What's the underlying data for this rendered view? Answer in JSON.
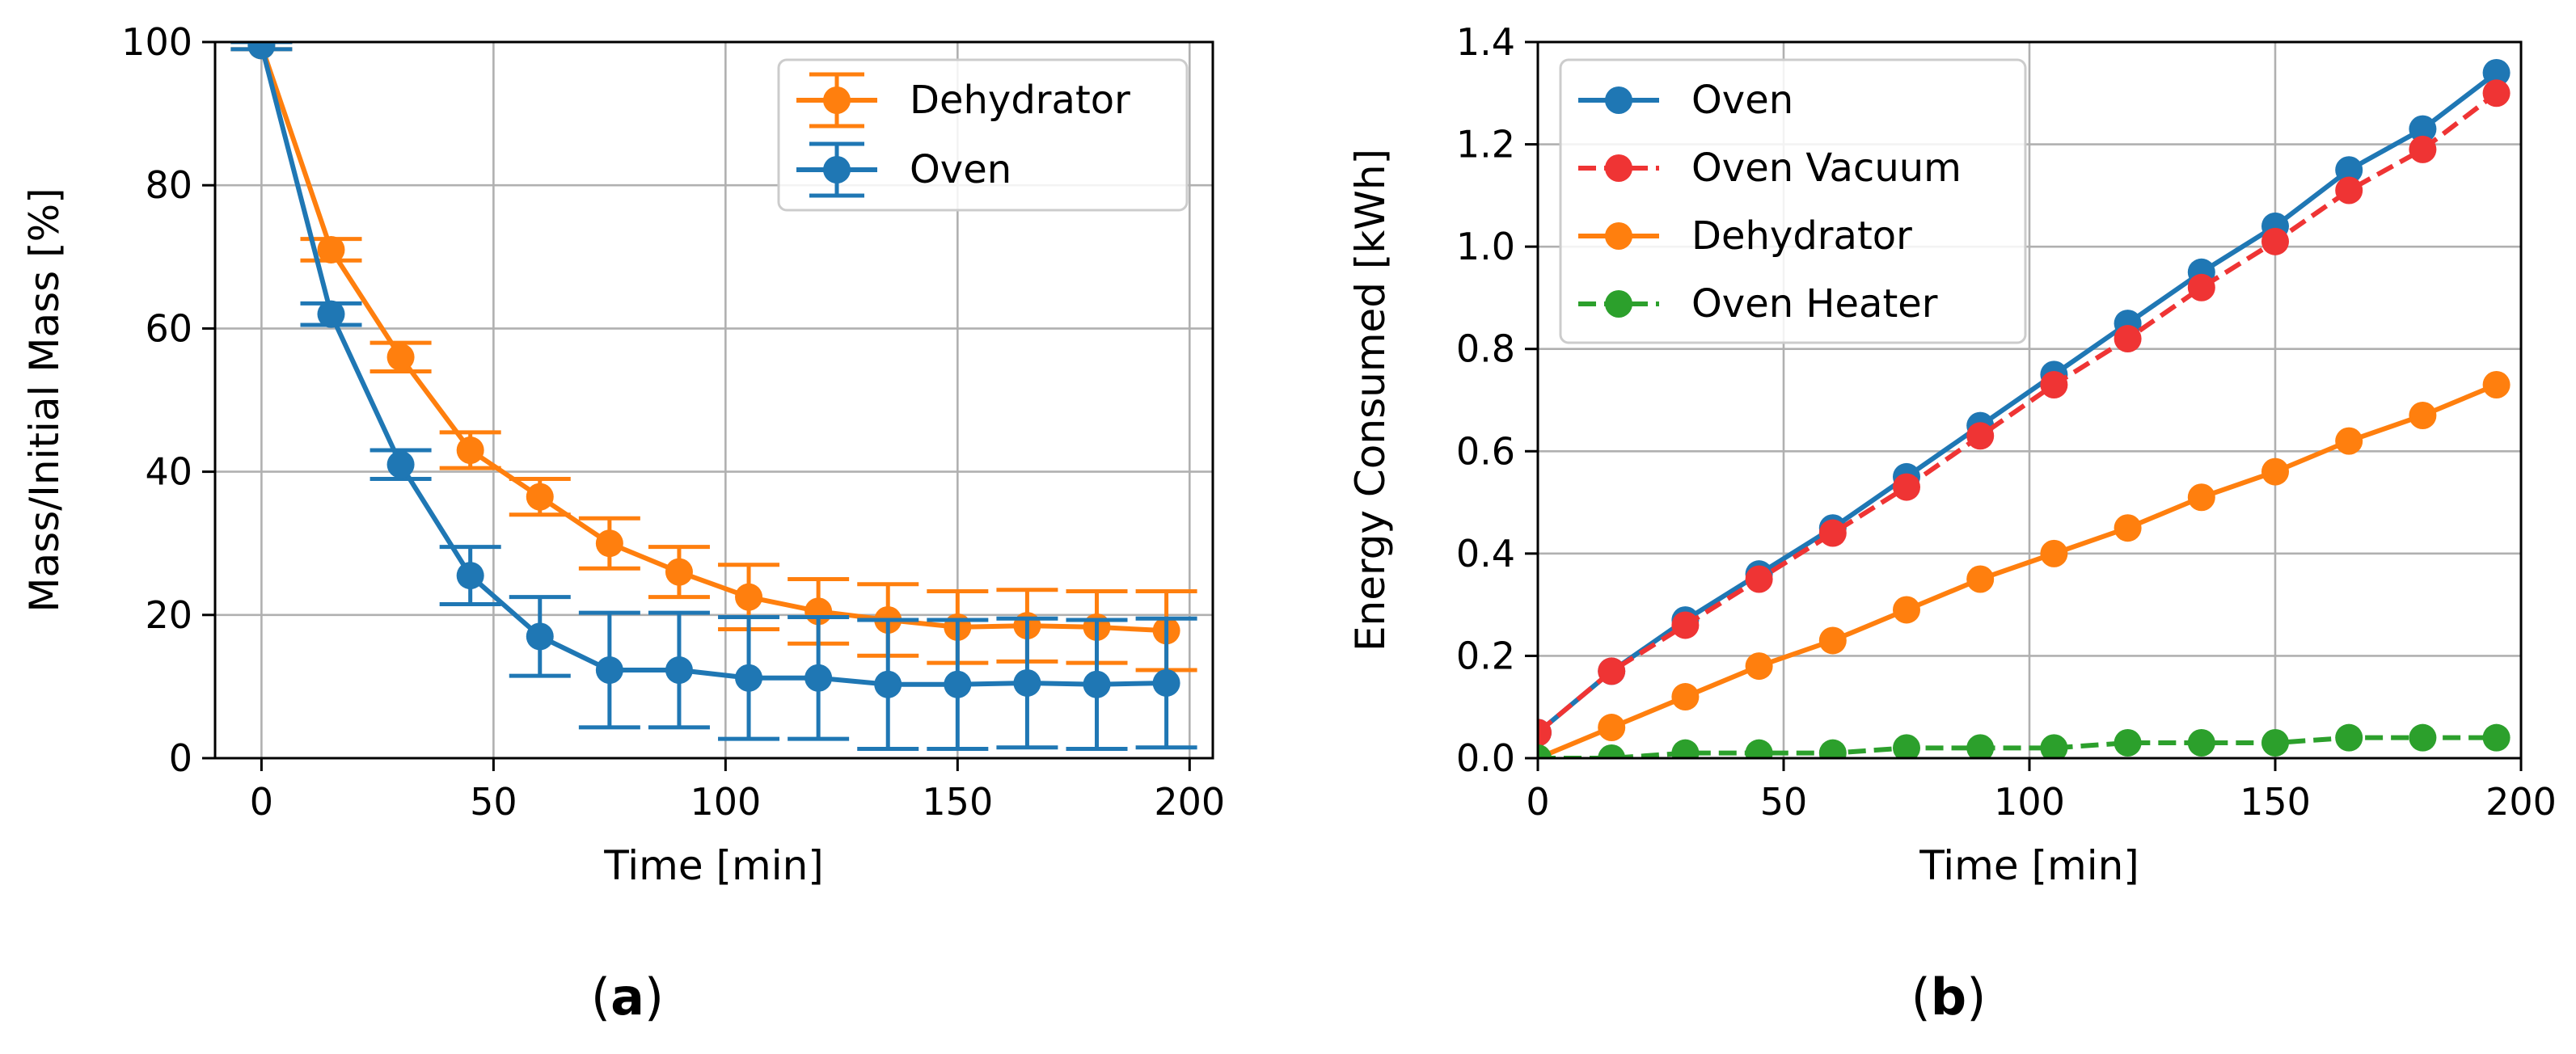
{
  "panels": [
    {
      "label_open": "(",
      "label_letter": "a",
      "label_close": ")"
    },
    {
      "label_open": "(",
      "label_letter": "b",
      "label_close": ")"
    }
  ],
  "chart_data": [
    {
      "id": "a",
      "type": "line",
      "xlabel": "Time [min]",
      "ylabel": "Mass/Initial Mass [%]",
      "xlim": [
        -10,
        205
      ],
      "ylim": [
        0,
        100
      ],
      "xticks": [
        0,
        50,
        100,
        150,
        200
      ],
      "yticks": [
        0,
        20,
        40,
        60,
        80,
        100
      ],
      "grid": true,
      "legend": "top-right",
      "series": [
        {
          "name": "Dehydrator",
          "color": "#ff7f0e",
          "linestyle": "solid",
          "x": [
            0,
            15,
            30,
            45,
            60,
            75,
            90,
            105,
            120,
            135,
            150,
            165,
            180,
            195
          ],
          "y": [
            99.5,
            71,
            56,
            43,
            36.5,
            30,
            26,
            22.5,
            20.5,
            19.3,
            18.3,
            18.5,
            18.3,
            17.8
          ],
          "err": [
            0.5,
            1.5,
            2,
            2.5,
            2.5,
            3.5,
            3.5,
            4.5,
            4.5,
            5,
            5,
            5,
            5,
            5.5
          ]
        },
        {
          "name": "Oven",
          "color": "#1f77b4",
          "linestyle": "solid",
          "x": [
            0,
            15,
            30,
            45,
            60,
            75,
            90,
            105,
            120,
            135,
            150,
            165,
            180,
            195
          ],
          "y": [
            99.5,
            62,
            41,
            25.5,
            17,
            12.3,
            12.3,
            11.2,
            11.2,
            10.3,
            10.3,
            10.5,
            10.3,
            10.5
          ],
          "err": [
            0.5,
            1.5,
            2,
            4,
            5.5,
            8,
            8,
            8.5,
            8.5,
            9,
            9,
            9,
            9,
            9
          ]
        }
      ]
    },
    {
      "id": "b",
      "type": "line",
      "xlabel": "Time [min]",
      "ylabel": "Energy Consumed [kWh]",
      "xlim": [
        0,
        200
      ],
      "ylim": [
        0,
        1.4
      ],
      "xticks": [
        0,
        50,
        100,
        150,
        200
      ],
      "yticks": [
        0.0,
        0.2,
        0.4,
        0.6,
        0.8,
        1.0,
        1.2,
        1.4
      ],
      "ytick_labels": [
        "0.0",
        "0.2",
        "0.4",
        "0.6",
        "0.8",
        "1.0",
        "1.2",
        "1.4"
      ],
      "grid": true,
      "legend": "top-left",
      "series": [
        {
          "name": "Oven",
          "color": "#1f77b4",
          "linestyle": "solid",
          "x": [
            0,
            15,
            30,
            45,
            60,
            75,
            90,
            105,
            120,
            135,
            150,
            165,
            180,
            195
          ],
          "y": [
            0.05,
            0.17,
            0.27,
            0.36,
            0.45,
            0.55,
            0.65,
            0.75,
            0.85,
            0.95,
            1.04,
            1.15,
            1.23,
            1.34
          ]
        },
        {
          "name": "Oven Vacuum",
          "color": "#ef3434",
          "linestyle": "dashed",
          "x": [
            0,
            15,
            30,
            45,
            60,
            75,
            90,
            105,
            120,
            135,
            150,
            165,
            180,
            195
          ],
          "y": [
            0.05,
            0.17,
            0.26,
            0.35,
            0.44,
            0.53,
            0.63,
            0.73,
            0.82,
            0.92,
            1.01,
            1.11,
            1.19,
            1.3
          ]
        },
        {
          "name": "Dehydrator",
          "color": "#ff7f0e",
          "linestyle": "solid",
          "x": [
            0,
            15,
            30,
            45,
            60,
            75,
            90,
            105,
            120,
            135,
            150,
            165,
            180,
            195
          ],
          "y": [
            0.0,
            0.06,
            0.12,
            0.18,
            0.23,
            0.29,
            0.35,
            0.4,
            0.45,
            0.51,
            0.56,
            0.62,
            0.67,
            0.73
          ]
        },
        {
          "name": "Oven Heater",
          "color": "#2ca02c",
          "linestyle": "dashed",
          "x": [
            0,
            15,
            30,
            45,
            60,
            75,
            90,
            105,
            120,
            135,
            150,
            165,
            180,
            195
          ],
          "y": [
            0.0,
            0.0,
            0.01,
            0.01,
            0.01,
            0.02,
            0.02,
            0.02,
            0.03,
            0.03,
            0.03,
            0.04,
            0.04,
            0.04
          ]
        }
      ]
    }
  ]
}
